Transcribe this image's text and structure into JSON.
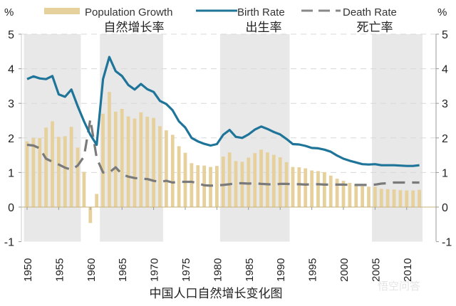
{
  "chart_data": {
    "type": "bar+line",
    "caption": "中国人口自然增长变化图",
    "y_unit_left": "%",
    "y_unit_right": "%",
    "ylim": [
      -1,
      5
    ],
    "yticks": [
      "-1",
      "0",
      "1",
      "2",
      "3",
      "4",
      "5"
    ],
    "xticks": [
      "1950",
      "1955",
      "1960",
      "1965",
      "1970",
      "1975",
      "1980",
      "1985",
      "1990",
      "1995",
      "2000",
      "2005",
      "2010"
    ],
    "grid": "horizontal dashed",
    "legend_position": "top",
    "shaded_periods": [
      [
        1950,
        1958
      ],
      [
        1962,
        1971
      ],
      [
        1981,
        1991
      ],
      [
        2005,
        2012
      ]
    ],
    "x_start": 1950,
    "colors": {
      "population_growth": "#e6d19c",
      "birth_rate": "#1f7499",
      "death_rate": "#7a7a7a",
      "shade": "#e8e8e8"
    },
    "series": [
      {
        "name": "Population Growth",
        "name_cn": "自然增长率",
        "type": "bar",
        "values": [
          1.9,
          2.0,
          2.0,
          2.3,
          2.48,
          2.03,
          2.05,
          2.32,
          1.72,
          1.02,
          -0.46,
          0.38,
          2.7,
          3.33,
          2.76,
          2.84,
          2.62,
          2.56,
          2.74,
          2.61,
          2.58,
          2.34,
          2.22,
          2.09,
          1.76,
          1.57,
          1.27,
          1.21,
          1.2,
          1.16,
          1.19,
          1.46,
          1.58,
          1.33,
          1.31,
          1.43,
          1.56,
          1.66,
          1.58,
          1.51,
          1.44,
          1.3,
          1.16,
          1.15,
          1.12,
          1.06,
          1.04,
          1.01,
          0.91,
          0.82,
          0.76,
          0.7,
          0.65,
          0.6,
          0.59,
          0.59,
          0.53,
          0.52,
          0.51,
          0.49,
          0.48,
          0.48,
          0.5
        ]
      },
      {
        "name": "Birth Rate",
        "name_cn": "出生率",
        "type": "line",
        "values": [
          3.7,
          3.78,
          3.72,
          3.7,
          3.79,
          3.26,
          3.19,
          3.4,
          2.92,
          2.48,
          2.09,
          1.8,
          3.7,
          4.34,
          3.93,
          3.79,
          3.53,
          3.4,
          3.56,
          3.41,
          3.33,
          3.07,
          2.98,
          2.8,
          2.48,
          2.3,
          2.0,
          1.9,
          1.83,
          1.78,
          1.82,
          2.09,
          2.23,
          2.03,
          2.0,
          2.1,
          2.24,
          2.33,
          2.26,
          2.17,
          2.1,
          1.97,
          1.82,
          1.81,
          1.77,
          1.71,
          1.7,
          1.66,
          1.6,
          1.49,
          1.4,
          1.34,
          1.29,
          1.24,
          1.23,
          1.24,
          1.21,
          1.21,
          1.21,
          1.2,
          1.19,
          1.19,
          1.21
        ]
      },
      {
        "name": "Death Rate",
        "name_cn": "死亡率",
        "type": "dashed-line",
        "values": [
          1.8,
          1.78,
          1.7,
          1.4,
          1.31,
          1.23,
          1.14,
          1.08,
          1.2,
          1.46,
          2.54,
          1.42,
          1.0,
          1.0,
          1.15,
          0.95,
          0.88,
          0.84,
          0.82,
          0.81,
          0.76,
          0.73,
          0.76,
          0.71,
          0.73,
          0.73,
          0.73,
          0.69,
          0.63,
          0.62,
          0.63,
          0.64,
          0.66,
          0.69,
          0.69,
          0.68,
          0.69,
          0.67,
          0.66,
          0.65,
          0.67,
          0.67,
          0.66,
          0.66,
          0.65,
          0.66,
          0.66,
          0.65,
          0.65,
          0.65,
          0.65,
          0.64,
          0.64,
          0.64,
          0.64,
          0.65,
          0.68,
          0.69,
          0.71,
          0.71,
          0.71,
          0.71,
          0.71
        ]
      }
    ]
  },
  "watermark": "悟空问答"
}
